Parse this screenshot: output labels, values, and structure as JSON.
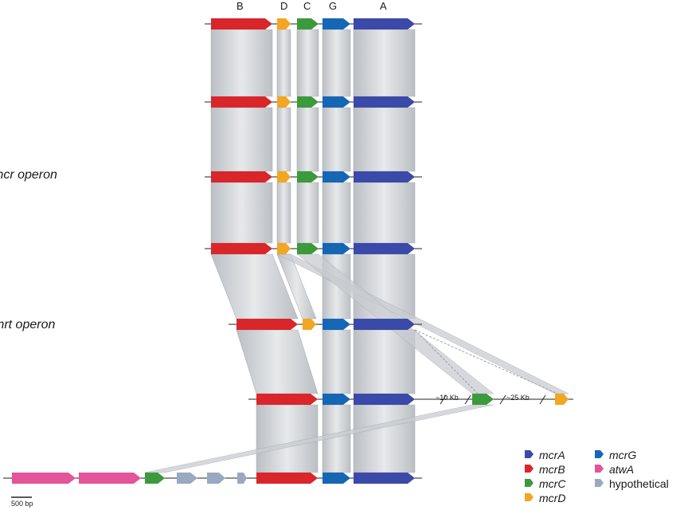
{
  "gene_letters": {
    "B": "B",
    "D": "D",
    "C": "C",
    "G": "G",
    "A": "A"
  },
  "labels": {
    "mcr_operon": "mcr operon",
    "mrt_operon": "mrt operon",
    "scale_bar": "500 bp",
    "gap_10kb": "~10 Kb",
    "gap_25kb": "~25 Kb"
  },
  "legend": [
    {
      "id": "mcrA",
      "label": "mcrA",
      "italic": true,
      "color": "#3b4aa8"
    },
    {
      "id": "mcrB",
      "label": "mcrB",
      "italic": true,
      "color": "#d9262b"
    },
    {
      "id": "mcrC",
      "label": "mcrC",
      "italic": true,
      "color": "#3c9a3c"
    },
    {
      "id": "mcrD",
      "label": "mcrD",
      "italic": true,
      "color": "#f3a623"
    },
    {
      "id": "mcrG",
      "label": "mcrG",
      "italic": true,
      "color": "#1567b5"
    },
    {
      "id": "atwA",
      "label": "atwA",
      "italic": true,
      "color": "#e3559a"
    },
    {
      "id": "hypothetical",
      "label": "hypothetical",
      "italic": false,
      "color": "#98a9c0"
    }
  ],
  "colors": {
    "mcrA": "#3b4aa8",
    "mcrB": "#d9262b",
    "mcrC": "#3c9a3c",
    "mcrD": "#f3a623",
    "mcrG": "#1567b5",
    "atwA": "#e3559a",
    "hypothetical": "#98a9c0",
    "synteny": "#c4c8cc"
  }
}
